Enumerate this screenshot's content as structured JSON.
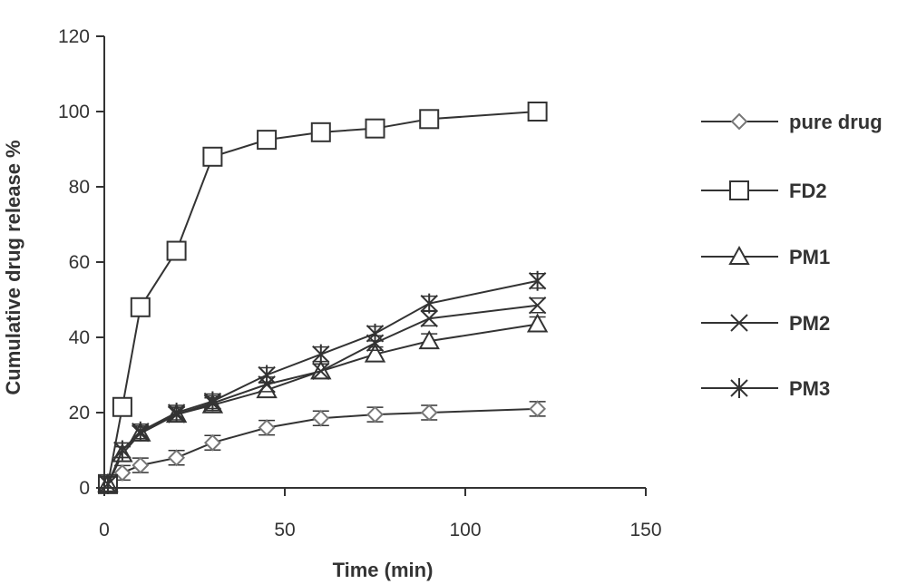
{
  "chart_data": {
    "type": "line",
    "title": "",
    "xlabel": "Time (min)",
    "ylabel": "Cumulative drug release %",
    "xlim": [
      0,
      150
    ],
    "ylim": [
      0,
      120
    ],
    "xticks": [
      0,
      50,
      100,
      150
    ],
    "yticks": [
      0,
      20,
      40,
      60,
      80,
      100,
      120
    ],
    "grid": false,
    "legend_position": "right",
    "line_color": "#333333",
    "series": [
      {
        "name": "pure drug",
        "marker": "diamond",
        "x": [
          1,
          5,
          10,
          20,
          30,
          45,
          60,
          75,
          90,
          120
        ],
        "y": [
          1,
          4,
          6,
          8,
          12,
          16,
          18.5,
          19.5,
          20,
          21
        ]
      },
      {
        "name": "FD2",
        "marker": "square",
        "x": [
          1,
          5,
          10,
          20,
          30,
          45,
          60,
          75,
          90,
          120
        ],
        "y": [
          1,
          21.5,
          48,
          63,
          88,
          92.5,
          94.5,
          95.5,
          98,
          100
        ]
      },
      {
        "name": "PM1",
        "marker": "triangle",
        "x": [
          1,
          5,
          10,
          20,
          30,
          45,
          60,
          75,
          90,
          120
        ],
        "y": [
          1,
          9,
          14.5,
          19.5,
          22,
          26,
          31,
          35.5,
          39,
          43.5
        ]
      },
      {
        "name": "PM2",
        "marker": "cross",
        "x": [
          1,
          5,
          10,
          20,
          30,
          45,
          60,
          75,
          90,
          120
        ],
        "y": [
          1,
          10,
          14.5,
          19.5,
          22.5,
          27.5,
          31,
          38.5,
          45,
          48.5
        ]
      },
      {
        "name": "PM3",
        "marker": "asterisk",
        "x": [
          1,
          5,
          10,
          20,
          30,
          45,
          60,
          75,
          90,
          120
        ],
        "y": [
          1,
          10,
          15,
          20,
          23,
          30,
          35.5,
          41,
          49,
          55
        ]
      }
    ]
  }
}
